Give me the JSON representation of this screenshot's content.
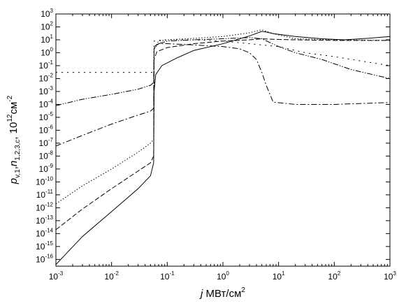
{
  "chart_data": {
    "type": "line",
    "title": "",
    "xlabel": {
      "italic": "j",
      "rest": " МВт/см",
      "sup": "2"
    },
    "ylabel": {
      "p": "p",
      "p_sub": "v,1",
      "sep": ",",
      "n": "n",
      "n_sub": "1,2,3,c",
      "rest": ", 10",
      "sup1": "12",
      "unit": "см",
      "sup2": "-2"
    },
    "x_scale": "log",
    "y_scale": "log",
    "xlim": [
      0.001,
      1000
    ],
    "ylim": [
      3e-17,
      1000
    ],
    "x_ticks": [
      {
        "value": 0.001,
        "base": "10",
        "exp": "-3"
      },
      {
        "value": 0.01,
        "base": "10",
        "exp": "-2"
      },
      {
        "value": 0.1,
        "base": "10",
        "exp": "-1"
      },
      {
        "value": 1,
        "base": "10",
        "exp": "0"
      },
      {
        "value": 10,
        "base": "10",
        "exp": "1"
      },
      {
        "value": 100,
        "base": "10",
        "exp": "2"
      },
      {
        "value": 1000,
        "base": "10",
        "exp": "3"
      }
    ],
    "y_ticks": [
      {
        "value": 1000.0,
        "base": "10",
        "exp": "3"
      },
      {
        "value": 100.0,
        "base": "10",
        "exp": "2"
      },
      {
        "value": 10.0,
        "base": "10",
        "exp": "1"
      },
      {
        "value": 1.0,
        "base": "10",
        "exp": "0"
      },
      {
        "value": 0.1,
        "base": "10",
        "exp": "-1"
      },
      {
        "value": 0.01,
        "base": "10",
        "exp": "-2"
      },
      {
        "value": 0.001,
        "base": "10",
        "exp": "-3"
      },
      {
        "value": 0.0001,
        "base": "10",
        "exp": "-4"
      },
      {
        "value": 1e-05,
        "base": "10",
        "exp": "-5"
      },
      {
        "value": 1e-06,
        "base": "10",
        "exp": "-6"
      },
      {
        "value": 1e-07,
        "base": "10",
        "exp": "-7"
      },
      {
        "value": 1e-08,
        "base": "10",
        "exp": "-8"
      },
      {
        "value": 1e-09,
        "base": "10",
        "exp": "-9"
      },
      {
        "value": 1e-10,
        "base": "10",
        "exp": "-10"
      },
      {
        "value": 1e-11,
        "base": "10",
        "exp": "-11"
      },
      {
        "value": 1e-12,
        "base": "10",
        "exp": "-12"
      },
      {
        "value": 1e-13,
        "base": "10",
        "exp": "-13"
      },
      {
        "value": 1e-14,
        "base": "10",
        "exp": "-14"
      },
      {
        "value": 1e-15,
        "base": "10",
        "exp": "-15"
      },
      {
        "value": 1e-16,
        "base": "10",
        "exp": "-16"
      }
    ],
    "grid": false,
    "legend": false,
    "series": [
      {
        "style": "solid",
        "points": [
          [
            0.001,
            4e-17
          ],
          [
            0.003,
            6e-15
          ],
          [
            0.01,
            5e-13
          ],
          [
            0.03,
            3e-11
          ],
          [
            0.05,
            3e-10
          ],
          [
            0.057,
            3e-09
          ],
          [
            0.058,
            0.001
          ],
          [
            0.062,
            0.02
          ],
          [
            0.08,
            0.1
          ],
          [
            0.15,
            0.4
          ],
          [
            0.3,
            1.5
          ],
          [
            1,
            5
          ],
          [
            3,
            20
          ],
          [
            5,
            45
          ],
          [
            6,
            40
          ],
          [
            8,
            30
          ],
          [
            20,
            18
          ],
          [
            60,
            12
          ],
          [
            150,
            10
          ],
          [
            400,
            13
          ],
          [
            1000,
            18
          ]
        ]
      },
      {
        "style": "dashed",
        "points": [
          [
            0.001,
            2e-14
          ],
          [
            0.003,
            8e-13
          ],
          [
            0.01,
            3e-11
          ],
          [
            0.03,
            7e-10
          ],
          [
            0.05,
            3e-09
          ],
          [
            0.057,
            1e-08
          ],
          [
            0.058,
            0.3
          ],
          [
            0.065,
            1.2
          ],
          [
            0.1,
            2.5
          ],
          [
            0.3,
            5
          ],
          [
            1,
            8
          ],
          [
            3,
            10
          ],
          [
            5,
            12
          ],
          [
            8,
            11
          ],
          [
            20,
            10
          ],
          [
            100,
            9
          ],
          [
            1000,
            9
          ]
        ]
      },
      {
        "style": "dotted",
        "points": [
          [
            0.001,
            2e-12
          ],
          [
            0.003,
            5e-11
          ],
          [
            0.01,
            1e-09
          ],
          [
            0.03,
            2e-08
          ],
          [
            0.05,
            1e-07
          ],
          [
            0.057,
            2e-07
          ],
          [
            0.058,
            2
          ],
          [
            0.07,
            8
          ],
          [
            0.1,
            10
          ],
          [
            0.3,
            13
          ],
          [
            1,
            18
          ],
          [
            3,
            35
          ],
          [
            5,
            60
          ],
          [
            8,
            30
          ],
          [
            20,
            12
          ],
          [
            100,
            10
          ],
          [
            1000,
            9
          ]
        ]
      },
      {
        "style": "dashdot",
        "points": [
          [
            0.001,
            6e-08
          ],
          [
            0.003,
            4e-07
          ],
          [
            0.01,
            3e-06
          ],
          [
            0.03,
            1.5e-05
          ],
          [
            0.05,
            3e-05
          ],
          [
            0.057,
            5e-05
          ],
          [
            0.058,
            3
          ],
          [
            0.07,
            5
          ],
          [
            0.1,
            5
          ],
          [
            0.3,
            4
          ],
          [
            1,
            3
          ],
          [
            2,
            2
          ],
          [
            3,
            1
          ],
          [
            4,
            0.3
          ],
          [
            5,
            0.03
          ],
          [
            6,
            0.003
          ],
          [
            8,
            0.00015
          ],
          [
            20,
            0.0001
          ],
          [
            100,
            0.0001
          ],
          [
            1000,
            0.00014
          ]
        ]
      },
      {
        "style": "dashdotdot",
        "points": [
          [
            0.001,
            8e-05
          ],
          [
            0.003,
            0.00025
          ],
          [
            0.01,
            0.0006
          ],
          [
            0.03,
            0.0015
          ],
          [
            0.05,
            0.003
          ],
          [
            0.057,
            0.005
          ],
          [
            0.058,
            2
          ],
          [
            0.07,
            5
          ],
          [
            0.1,
            8
          ],
          [
            0.3,
            10
          ],
          [
            1,
            12
          ],
          [
            3,
            15
          ],
          [
            5,
            12
          ],
          [
            10,
            3
          ],
          [
            20,
            1
          ],
          [
            60,
            0.3
          ],
          [
            200,
            0.05
          ],
          [
            1000,
            0.01
          ]
        ]
      },
      {
        "style": "sparse",
        "points": [
          [
            0.001,
            0.03
          ],
          [
            0.01,
            0.03
          ],
          [
            0.03,
            0.03
          ],
          [
            0.057,
            0.03
          ],
          [
            0.058,
            8
          ],
          [
            0.07,
            9
          ],
          [
            0.1,
            10
          ],
          [
            0.3,
            10
          ],
          [
            1,
            8
          ],
          [
            3,
            5
          ],
          [
            10,
            3
          ],
          [
            30,
            1
          ],
          [
            100,
            0.5
          ],
          [
            1000,
            0.1
          ]
        ]
      }
    ]
  }
}
